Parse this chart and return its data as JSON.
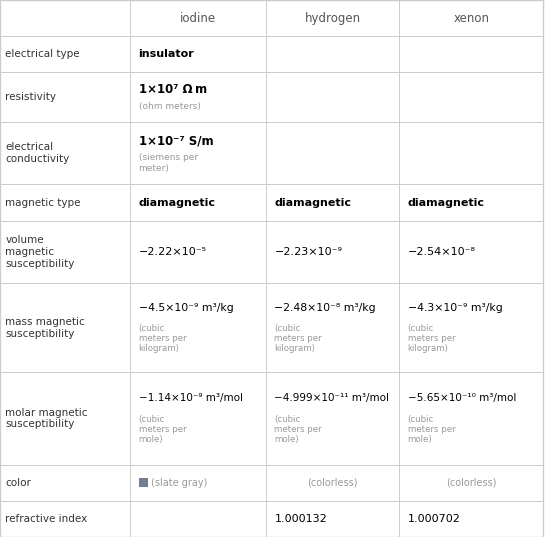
{
  "col_headers": [
    "",
    "iodine",
    "hydrogen",
    "xenon"
  ],
  "rows": [
    {
      "label": "electrical type",
      "iodine": {
        "bold": "insulator",
        "sub": ""
      },
      "hydrogen": {
        "bold": "",
        "sub": ""
      },
      "xenon": {
        "bold": "",
        "sub": ""
      }
    },
    {
      "label": "resistivity",
      "iodine": {
        "main": "1×10⁷ Ω m",
        "sup_exp": "7",
        "sub": "(ohm meters)"
      },
      "hydrogen": {
        "main": "",
        "sub": ""
      },
      "xenon": {
        "main": "",
        "sub": ""
      }
    },
    {
      "label": "electrical\nconductivity",
      "iodine": {
        "main": "1×10⁻⁷ S/m",
        "sub": "(siemens per\nmeter)"
      },
      "hydrogen": {
        "main": "",
        "sub": ""
      },
      "xenon": {
        "main": "",
        "sub": ""
      }
    },
    {
      "label": "magnetic type",
      "iodine": {
        "bold": "diamagnetic"
      },
      "hydrogen": {
        "bold": "diamagnetic"
      },
      "xenon": {
        "bold": "diamagnetic"
      }
    },
    {
      "label": "volume\nmagnetic\nsusceptibility",
      "iodine": {
        "main": "−2.22×10⁻⁵"
      },
      "hydrogen": {
        "main": "−2.23×10⁻⁹"
      },
      "xenon": {
        "main": "−2.54×10⁻⁸"
      }
    },
    {
      "label": "mass magnetic\nsusceptibility",
      "iodine": {
        "main": "−4.5×10⁻⁹ m³/",
        "main2": "kg",
        "sub": "(cubic\nmeters per\nkilogram)"
      },
      "hydrogen": {
        "main": "−2.48×10⁻⁸ m³/",
        "main2": "kg",
        "sub": "(cubic\nmeters per\nkilogram)"
      },
      "xenon": {
        "main": "−4.3×10⁻⁹ m³/",
        "main2": "kg",
        "sub": "(cubic\nmeters per\nkilogram)"
      }
    },
    {
      "label": "molar magnetic\nsusceptibility",
      "iodine": {
        "main": "−1.14×10⁻⁹ m³/",
        "main2": "mol",
        "sub": "(cubic\nmeters per\nmole)"
      },
      "hydrogen": {
        "main": "−4.999×10⁻¹¹ m³/mol",
        "main2": "",
        "sub": "(cubic\nmeters per\nmole)"
      },
      "xenon": {
        "main": "−5.65×10⁻¹⁰ m³",
        "main2": "/mol",
        "sub": "(cubic\nmeters per\nmole)"
      }
    },
    {
      "label": "color",
      "iodine": {
        "color_box": "#708090",
        "text": "(slate gray)"
      },
      "hydrogen": {
        "text": "(colorless)"
      },
      "xenon": {
        "text": "(colorless)"
      }
    },
    {
      "label": "refractive index",
      "iodine": {
        "main": ""
      },
      "hydrogen": {
        "main": "1.000132"
      },
      "xenon": {
        "main": "1.000702"
      }
    }
  ],
  "bg_color": "#ffffff",
  "header_text_color": "#555555",
  "label_text_color": "#333333",
  "bold_text_color": "#000000",
  "main_text_color": "#000000",
  "sub_text_color": "#999999",
  "line_color": "#cccccc",
  "slate_gray": "#708090"
}
